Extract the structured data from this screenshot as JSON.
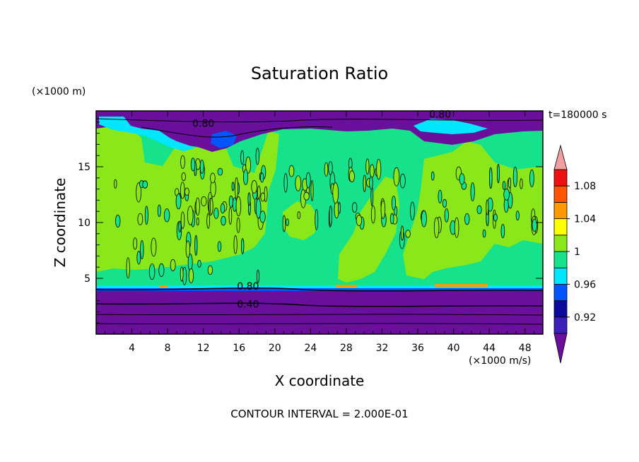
{
  "chart_data": {
    "type": "heatmap",
    "title": "Saturation Ratio",
    "xlabel": "X coordinate",
    "ylabel": "Z coordinate",
    "x_unit": "(×1000 m/s)",
    "y_unit": "(×1000 m)",
    "time_label": "t=180000 s",
    "footer": "CONTOUR INTERVAL = 2.000E-01",
    "xlim": [
      0,
      50
    ],
    "ylim": [
      0,
      20
    ],
    "x_ticks": [
      "4",
      "8",
      "12",
      "16",
      "20",
      "24",
      "28",
      "32",
      "36",
      "40",
      "44",
      "48"
    ],
    "x_tick_values": [
      4,
      8,
      12,
      16,
      20,
      24,
      28,
      32,
      36,
      40,
      44,
      48
    ],
    "y_ticks": [
      "5",
      "10",
      "15"
    ],
    "y_tick_values": [
      5,
      10,
      15
    ],
    "contour_labels": [
      {
        "text": "0.80",
        "x": 38.5,
        "z": 19.7
      },
      {
        "text": "0.80",
        "x": 12.0,
        "z": 18.9
      },
      {
        "text": "0.80",
        "x": 17.0,
        "z": 4.3
      },
      {
        "text": "0.40",
        "x": 17.0,
        "z": 2.7
      }
    ],
    "colorbar": {
      "tick_labels": [
        "1.08",
        "1.04",
        "1",
        "0.96",
        "0.92"
      ],
      "levels": [
        {
          "min": null,
          "max": 0.9,
          "color": "#6a0f9c"
        },
        {
          "min": 0.9,
          "max": 0.92,
          "color": "#3a1fb8"
        },
        {
          "min": 0.92,
          "max": 0.94,
          "color": "#0a0a9c"
        },
        {
          "min": 0.94,
          "max": 0.96,
          "color": "#0055ff"
        },
        {
          "min": 0.96,
          "max": 0.98,
          "color": "#00e6ff"
        },
        {
          "min": 0.98,
          "max": 1.0,
          "color": "#17e28c"
        },
        {
          "min": 1.0,
          "max": 1.02,
          "color": "#8ae81a"
        },
        {
          "min": 1.02,
          "max": 1.04,
          "color": "#ffff00"
        },
        {
          "min": 1.04,
          "max": 1.06,
          "color": "#ff9900"
        },
        {
          "min": 1.06,
          "max": 1.08,
          "color": "#ff5500"
        },
        {
          "min": 1.08,
          "max": 1.1,
          "color": "#ee1111"
        },
        {
          "min": 1.1,
          "max": null,
          "color": "#f0a0a0"
        }
      ]
    },
    "regions": [
      {
        "name": "lower-layer",
        "z_min": 0,
        "z_max": 4.0,
        "value": 0.6,
        "color": "#6a0f9c"
      },
      {
        "name": "mid-layer-background",
        "z_min": 4.0,
        "z_max": 17.5,
        "value": 0.99,
        "color": "#17e28c"
      },
      {
        "name": "supersaturated-cells",
        "z_min": 4.5,
        "z_max": 18.0,
        "value": 1.01,
        "color": "#8ae81a"
      },
      {
        "name": "upper-layer",
        "z_min": 17.5,
        "z_max": 20,
        "value": 0.8,
        "color": "#6a0f9c"
      }
    ]
  }
}
